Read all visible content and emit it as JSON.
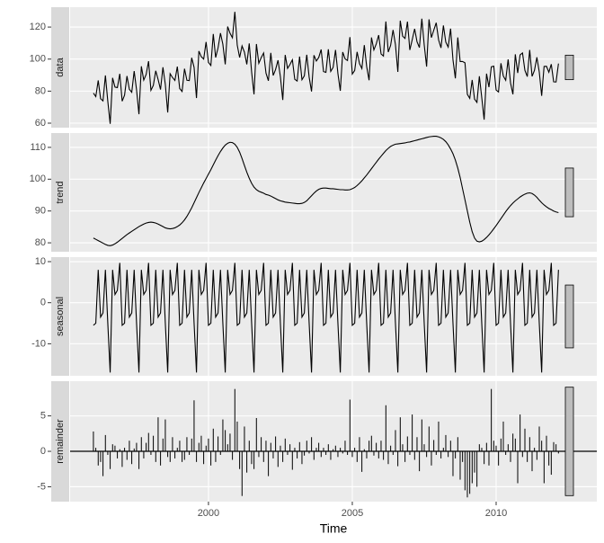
{
  "chart_data": {
    "type": "stl",
    "x_label": "Time",
    "xlim": [
      1995.19,
      2013.5
    ],
    "xticks": [
      2000,
      2005,
      2010
    ],
    "x": [
      1996,
      1996.083,
      1996.167,
      1996.25,
      1996.333,
      1996.417,
      1996.5,
      1996.583,
      1996.667,
      1996.75,
      1996.833,
      1996.917,
      1997,
      1997.083,
      1997.167,
      1997.25,
      1997.333,
      1997.417,
      1997.5,
      1997.583,
      1997.667,
      1997.75,
      1997.833,
      1997.917,
      1998,
      1998.083,
      1998.167,
      1998.25,
      1998.333,
      1998.417,
      1998.5,
      1998.583,
      1998.667,
      1998.75,
      1998.833,
      1998.917,
      1999,
      1999.083,
      1999.167,
      1999.25,
      1999.333,
      1999.417,
      1999.5,
      1999.583,
      1999.667,
      1999.75,
      1999.833,
      1999.917,
      2000,
      2000.083,
      2000.167,
      2000.25,
      2000.333,
      2000.417,
      2000.5,
      2000.583,
      2000.667,
      2000.75,
      2000.833,
      2000.917,
      2001,
      2001.083,
      2001.167,
      2001.25,
      2001.333,
      2001.417,
      2001.5,
      2001.583,
      2001.667,
      2001.75,
      2001.833,
      2001.917,
      2002,
      2002.083,
      2002.167,
      2002.25,
      2002.333,
      2002.417,
      2002.5,
      2002.583,
      2002.667,
      2002.75,
      2002.833,
      2002.917,
      2003,
      2003.083,
      2003.167,
      2003.25,
      2003.333,
      2003.417,
      2003.5,
      2003.583,
      2003.667,
      2003.75,
      2003.833,
      2003.917,
      2004,
      2004.083,
      2004.167,
      2004.25,
      2004.333,
      2004.417,
      2004.5,
      2004.583,
      2004.667,
      2004.75,
      2004.833,
      2004.917,
      2005,
      2005.083,
      2005.167,
      2005.25,
      2005.333,
      2005.417,
      2005.5,
      2005.583,
      2005.667,
      2005.75,
      2005.833,
      2005.917,
      2006,
      2006.083,
      2006.167,
      2006.25,
      2006.333,
      2006.417,
      2006.5,
      2006.583,
      2006.667,
      2006.75,
      2006.833,
      2006.917,
      2007,
      2007.083,
      2007.167,
      2007.25,
      2007.333,
      2007.417,
      2007.5,
      2007.583,
      2007.667,
      2007.75,
      2007.833,
      2007.917,
      2008,
      2008.083,
      2008.167,
      2008.25,
      2008.333,
      2008.417,
      2008.5,
      2008.583,
      2008.667,
      2008.75,
      2008.833,
      2008.917,
      2009,
      2009.083,
      2009.167,
      2009.25,
      2009.333,
      2009.417,
      2009.5,
      2009.583,
      2009.667,
      2009.75,
      2009.833,
      2009.917,
      2010,
      2010.083,
      2010.167,
      2010.25,
      2010.333,
      2010.417,
      2010.5,
      2010.583,
      2010.667,
      2010.75,
      2010.833,
      2010.917,
      2011,
      2011.083,
      2011.167,
      2011.25,
      2011.333,
      2011.417,
      2011.5,
      2011.583,
      2011.667,
      2011.75,
      2011.833,
      2011.917,
      2012,
      2012.083,
      2012.167
    ],
    "panels": [
      {
        "name": "data",
        "type": "line",
        "ylim": [
          57.2,
          132.4
        ],
        "yticks": [
          60,
          80,
          100,
          120
        ],
        "values": [
          78.8,
          76.6,
          86.7,
          75.3,
          73.9,
          89.8,
          73.7,
          59.6,
          88.3,
          82.5,
          82.2,
          90.8,
          73.7,
          77.5,
          89.4,
          81.1,
          79.3,
          92.5,
          80.8,
          65.6,
          95.5,
          86.9,
          90.4,
          98.7,
          80.5,
          83.6,
          92.7,
          87.2,
          81,
          94.9,
          84.2,
          66.7,
          90.9,
          88.5,
          86.7,
          95.3,
          81.6,
          79.8,
          94,
          86.8,
          86.6,
          100.8,
          94.8,
          75.7,
          105,
          101.5,
          100,
          110.7,
          97.9,
          96,
          115.7,
          101,
          107,
          116.2,
          109.3,
          96.7,
          120.3,
          116.1,
          113.3,
          129.5,
          108.7,
          101,
          108.2,
          104.3,
          96.7,
          109.8,
          91.9,
          78,
          109.4,
          97.4,
          100.9,
          103.8,
          91.2,
          86.5,
          103.9,
          89.8,
          93.5,
          99.3,
          89,
          74.5,
          102.6,
          94.2,
          96.6,
          99.6,
          87.4,
          86.3,
          101.6,
          87.1,
          89.6,
          102.7,
          88.7,
          79.8,
          102.4,
          98.8,
          101,
          106,
          92.2,
          91.7,
          106.1,
          92.3,
          94.8,
          105.7,
          91,
          80.2,
          104.4,
          100.1,
          99.1,
          113.7,
          90.7,
          92.9,
          104.5,
          97.2,
          94.1,
          108.7,
          95.3,
          86.8,
          113.5,
          105.7,
          109.5,
          115,
          103.2,
          101.9,
          123.5,
          104.4,
          108.6,
          118.2,
          109,
          92,
          124,
          114.3,
          112.9,
          123.4,
          105.7,
          112.1,
          118.9,
          110.8,
          107.2,
          125.2,
          108.9,
          95.3,
          124.8,
          113.4,
          118.1,
          122.7,
          112,
          107,
          121,
          110.6,
          107.5,
          119,
          99.5,
          88,
          113.5,
          98.5,
          98.5,
          97.7,
          78,
          75.5,
          87,
          75,
          73,
          89.3,
          76,
          62.2,
          90.9,
          82.5,
          95.2,
          95.6,
          80.7,
          79.5,
          97.4,
          89.4,
          86.8,
          99.8,
          85.2,
          78,
          103,
          91.3,
          102.6,
          103.8,
          93,
          89.1,
          105.7,
          89.2,
          93,
          101.1,
          91.9,
          77.1,
          95.4,
          95.5,
          91.8,
          96.8,
          85.8,
          85.7,
          97.2
        ]
      },
      {
        "name": "trend",
        "type": "line",
        "ylim": [
          77.2,
          114.5
        ],
        "yticks": [
          80,
          90,
          100,
          110
        ],
        "values": [
          81.5,
          81.1,
          80.7,
          80.3,
          79.9,
          79.5,
          79.2,
          79.1,
          79.3,
          79.7,
          80.2,
          80.8,
          81.4,
          82.0,
          82.6,
          83.1,
          83.6,
          84.1,
          84.6,
          85.1,
          85.5,
          85.9,
          86.2,
          86.4,
          86.5,
          86.4,
          86.2,
          85.9,
          85.5,
          85.1,
          84.7,
          84.5,
          84.4,
          84.5,
          84.7,
          85.1,
          85.6,
          86.3,
          87.2,
          88.3,
          89.6,
          91,
          92.6,
          94.2,
          95.8,
          97.3,
          98.8,
          100.2,
          101.6,
          103,
          104.5,
          106,
          107.4,
          108.7,
          109.8,
          110.7,
          111.3,
          111.6,
          111.5,
          111,
          110,
          108.5,
          106.5,
          104.3,
          102.2,
          100.3,
          98.7,
          97.5,
          96.7,
          96.2,
          95.9,
          95.6,
          95.2,
          95,
          94.7,
          94.3,
          93.9,
          93.5,
          93.2,
          93,
          92.8,
          92.7,
          92.6,
          92.5,
          92.4,
          92.3,
          92.3,
          92.4,
          92.7,
          93.2,
          94,
          94.8,
          95.6,
          96.3,
          96.8,
          97.1,
          97.2,
          97.2,
          97.1,
          97,
          97,
          96.9,
          96.8,
          96.7,
          96.7,
          96.6,
          96.6,
          96.7,
          97,
          97.4,
          98,
          98.7,
          99.5,
          100.4,
          101.3,
          102.3,
          103.3,
          104.3,
          105.3,
          106.3,
          107.2,
          108.1,
          109,
          109.7,
          110.3,
          110.7,
          111,
          111.1,
          111.2,
          111.3,
          111.4,
          111.6,
          111.7,
          111.9,
          112.1,
          112.3,
          112.5,
          112.7,
          112.9,
          113.1,
          113.3,
          113.4,
          113.5,
          113.5,
          113.3,
          113,
          112.5,
          111.8,
          110.8,
          109.5,
          108,
          106,
          103.5,
          100.5,
          97,
          93.5,
          90,
          86.5,
          83.5,
          81.5,
          80.5,
          80.3,
          80.5,
          81,
          81.7,
          82.5,
          83.4,
          84.4,
          85.4,
          86.5,
          87.6,
          88.7,
          89.8,
          90.8,
          91.7,
          92.5,
          93.2,
          93.8,
          94.4,
          94.9,
          95.3,
          95.6,
          95.7,
          95.5,
          95,
          94.3,
          93.4,
          92.6,
          91.9,
          91.3,
          90.8,
          90.4,
          90,
          89.7,
          89.5
        ]
      },
      {
        "name": "seasonal",
        "type": "line",
        "ylim": [
          -17.8,
          11.1
        ],
        "yticks": [
          -10,
          0,
          10
        ],
        "values": [
          -5.5,
          -5,
          8,
          -3.5,
          -2.5,
          8,
          -5,
          -17,
          8,
          2,
          3,
          9.7,
          -5.5,
          -5,
          8,
          -3.5,
          -2.5,
          8,
          -5,
          -17,
          8,
          2,
          3,
          9.7,
          -5.5,
          -5,
          8,
          -3.5,
          -2.5,
          8,
          -5,
          -17,
          8,
          2,
          3,
          9.7,
          -5.5,
          -5,
          8,
          -3.5,
          -2.5,
          8,
          -5,
          -17,
          8,
          2,
          3,
          9.7,
          -5.5,
          -5,
          8,
          -3.5,
          -2.5,
          8,
          -5,
          -17,
          8,
          2,
          3,
          9.7,
          -5.5,
          -5,
          8,
          -3.5,
          -2.5,
          8,
          -5,
          -17,
          8,
          2,
          3,
          9.7,
          -5.5,
          -5,
          8,
          -3.5,
          -2.5,
          8,
          -5,
          -17,
          8,
          2,
          3,
          9.7,
          -5.5,
          -5,
          8,
          -3.5,
          -2.5,
          8,
          -5,
          -17,
          8,
          2,
          3,
          9.7,
          -5.5,
          -5,
          8,
          -3.5,
          -2.5,
          8,
          -5,
          -17,
          8,
          2,
          3,
          9.7,
          -5.5,
          -5,
          8,
          -3.5,
          -2.5,
          8,
          -5,
          -17,
          8,
          2,
          3,
          9.7,
          -5.5,
          -5,
          8,
          -3.5,
          -2.5,
          8,
          -5,
          -17,
          8,
          2,
          3,
          9.7,
          -5.5,
          -5,
          8,
          -3.5,
          -2.5,
          8,
          -5,
          -17,
          8,
          2,
          3,
          9.7,
          -5.5,
          -5,
          8,
          -3.5,
          -2.5,
          8,
          -5,
          -17,
          8,
          2,
          3,
          9.7,
          -5.5,
          -5,
          8,
          -3.5,
          -2.5,
          8,
          -5,
          -17,
          8,
          2,
          3,
          9.7,
          -5.5,
          -5,
          8,
          -3.5,
          -2.5,
          8,
          -5,
          -17,
          8,
          2,
          3,
          9.7,
          -5.5,
          -5,
          8,
          -3.5,
          -2.5,
          8,
          -5,
          -17,
          8,
          2,
          3,
          9.7,
          -5.5,
          -5,
          8
        ]
      },
      {
        "name": "remainder",
        "type": "bar",
        "ylim": [
          -7.1,
          9.9
        ],
        "yticks": [
          -5,
          0,
          5
        ],
        "values": [
          2.8,
          0.5,
          -2,
          -1.5,
          -3.5,
          2.3,
          -0.5,
          -2.5,
          1,
          0.8,
          -1,
          0.3,
          -2.2,
          0.5,
          -1.2,
          1.5,
          -1.8,
          0.4,
          1.2,
          -2.5,
          2,
          -1,
          1.2,
          2.6,
          -0.5,
          2.2,
          -1.5,
          4.8,
          -2,
          1.8,
          4.5,
          -0.8,
          -1.5,
          2,
          -1,
          0.5,
          1.5,
          -1.5,
          -1.2,
          2,
          -0.5,
          1.8,
          7.2,
          -1.5,
          1.2,
          2.2,
          -1.8,
          0.8,
          1.8,
          -2,
          3.2,
          -1.5,
          2.1,
          -0.5,
          4.5,
          3,
          1,
          2.5,
          -1.2,
          8.8,
          4.2,
          -2.5,
          -6.3,
          3.5,
          -3,
          1.5,
          -1.8,
          -2.5,
          4.7,
          -0.8,
          2,
          -1.5,
          1.5,
          -3.5,
          1.2,
          -1,
          2.1,
          -2.2,
          0.8,
          -1.5,
          1.8,
          -0.5,
          1,
          -2.6,
          0.5,
          -1,
          1.3,
          -1.8,
          -0.6,
          1.5,
          -0.3,
          2,
          -1.2,
          0.5,
          1.2,
          -0.8,
          0.5,
          -0.5,
          1,
          -1.2,
          0.3,
          0.8,
          -0.8,
          0.5,
          -0.3,
          1.5,
          -0.5,
          7.3,
          -0.8,
          0.5,
          -1.5,
          2,
          -2.9,
          0.3,
          -1,
          1.5,
          2.2,
          -0.6,
          1.2,
          -1,
          1.5,
          -1.2,
          6.5,
          -1.8,
          0.8,
          -0.5,
          3,
          -2.1,
          4.8,
          1,
          -1.5,
          2.1,
          -0.5,
          5.2,
          -1.2,
          2,
          -2.8,
          4.5,
          1,
          -0.8,
          3.5,
          -2,
          1.6,
          -0.5,
          4.2,
          -1,
          0.5,
          2.3,
          -0.8,
          1.5,
          -3.5,
          -1,
          2,
          -4,
          -1.5,
          -5.5,
          -6.5,
          -6,
          -4.5,
          -3,
          -5,
          1,
          0.5,
          -1.8,
          1.2,
          -2,
          8.8,
          1.5,
          0.8,
          -2,
          1.8,
          4.2,
          -0.5,
          1,
          -1.5,
          2.5,
          1.8,
          -4.5,
          5.2,
          -0.8,
          3.2,
          -1.5,
          2,
          -2.8,
          0.5,
          -1.2,
          3.5,
          1.5,
          -4.5,
          2.2,
          -2,
          -3.3,
          1.3,
          1,
          -0.3
        ]
      }
    ]
  }
}
